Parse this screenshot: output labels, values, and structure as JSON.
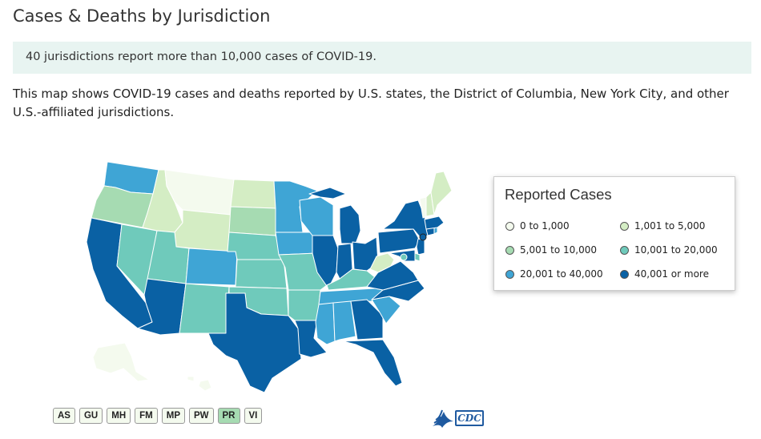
{
  "page": {
    "title": "Cases & Deaths by Jurisdiction",
    "callout": "40 jurisdictions report more than 10,000 cases of COVID-19.",
    "intro": "This map shows COVID-19 cases and deaths reported by U.S. states, the District of Columbia, New York City, and other U.S.-affiliated jurisdictions."
  },
  "legend": {
    "title": "Reported Cases",
    "items": [
      {
        "label": "0 to 1,000",
        "color": "#f4faee"
      },
      {
        "label": "1,001 to 5,000",
        "color": "#d4edc4"
      },
      {
        "label": "5,001 to 10,000",
        "color": "#a6dbb2"
      },
      {
        "label": "10,001 to 20,000",
        "color": "#6fcabb"
      },
      {
        "label": "20,001 to 40,000",
        "color": "#3fa5d5"
      },
      {
        "label": "40,001 or more",
        "color": "#0a61a4"
      }
    ]
  },
  "territories": [
    {
      "label": "AS",
      "color": "#f4faee"
    },
    {
      "label": "GU",
      "color": "#f4faee"
    },
    {
      "label": "MH",
      "color": "#f4faee"
    },
    {
      "label": "FM",
      "color": "#f4faee"
    },
    {
      "label": "MP",
      "color": "#f4faee"
    },
    {
      "label": "PW",
      "color": "#f4faee"
    },
    {
      "label": "PR",
      "color": "#a6dbb2"
    },
    {
      "label": "VI",
      "color": "#f4faee"
    }
  ],
  "logo": {
    "text": "CDC"
  },
  "states": {
    "WA": 4,
    "OR": 2,
    "CA": 5,
    "NV": 3,
    "ID": 1,
    "MT": 0,
    "WY": 1,
    "UT": 3,
    "AZ": 5,
    "CO": 4,
    "NM": 3,
    "ND": 1,
    "SD": 2,
    "NE": 3,
    "KS": 3,
    "OK": 3,
    "TX": 5,
    "MN": 4,
    "IA": 4,
    "MO": 3,
    "AR": 3,
    "LA": 5,
    "WI": 4,
    "IL": 5,
    "MI": 5,
    "IN": 5,
    "OH": 5,
    "KY": 3,
    "TN": 4,
    "MS": 4,
    "AL": 4,
    "GA": 5,
    "FL": 5,
    "SC": 4,
    "NC": 5,
    "VA": 5,
    "WV": 1,
    "PA": 5,
    "NY": 5,
    "NJ": 5,
    "DE": 3,
    "MD": 5,
    "DC": 3,
    "CT": 5,
    "RI": 4,
    "MA": 5,
    "VT": 0,
    "NH": 1,
    "ME": 1,
    "AK": 0,
    "HI": 0
  }
}
